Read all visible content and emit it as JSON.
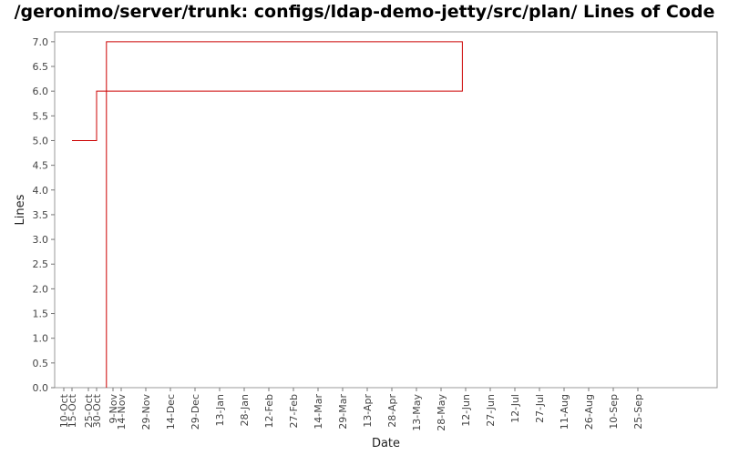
{
  "chart_data": {
    "type": "line",
    "title": "/geronimo/server/trunk: configs/ldap-demo-jetty/src/plan/ Lines of Code",
    "xlabel": "Date",
    "ylabel": "Lines",
    "ylim": [
      0,
      7.2
    ],
    "y_ticks": [
      "0.0",
      "0.5",
      "1.0",
      "1.5",
      "2.0",
      "2.5",
      "3.0",
      "3.5",
      "4.0",
      "4.5",
      "5.0",
      "5.5",
      "6.0",
      "6.5",
      "7.0"
    ],
    "x_ticks": [
      "15-Oct",
      "30-Oct",
      "14-Nov",
      "29-Nov",
      "14-Dec",
      "29-Dec",
      "13-Jan",
      "28-Jan",
      "12-Feb",
      "27-Feb",
      "14-Mar",
      "29-Mar",
      "13-Apr",
      "28-Apr",
      "13-May",
      "28-May",
      "12-Jun",
      "27-Jun",
      "12-Jul",
      "27-Jul",
      "11-Aug",
      "26-Aug",
      "10-Sep",
      "25-Sep",
      "10-Oct",
      "25-Oct",
      "9-Nov"
    ],
    "grid": false,
    "series": [
      {
        "color": "#cc0000",
        "step": true,
        "x": [
          "15-Oct",
          "30-Oct",
          "10-Jun",
          "5-Nov",
          "5-Nov"
        ],
        "y": [
          5,
          6,
          7,
          7,
          0
        ]
      }
    ]
  }
}
